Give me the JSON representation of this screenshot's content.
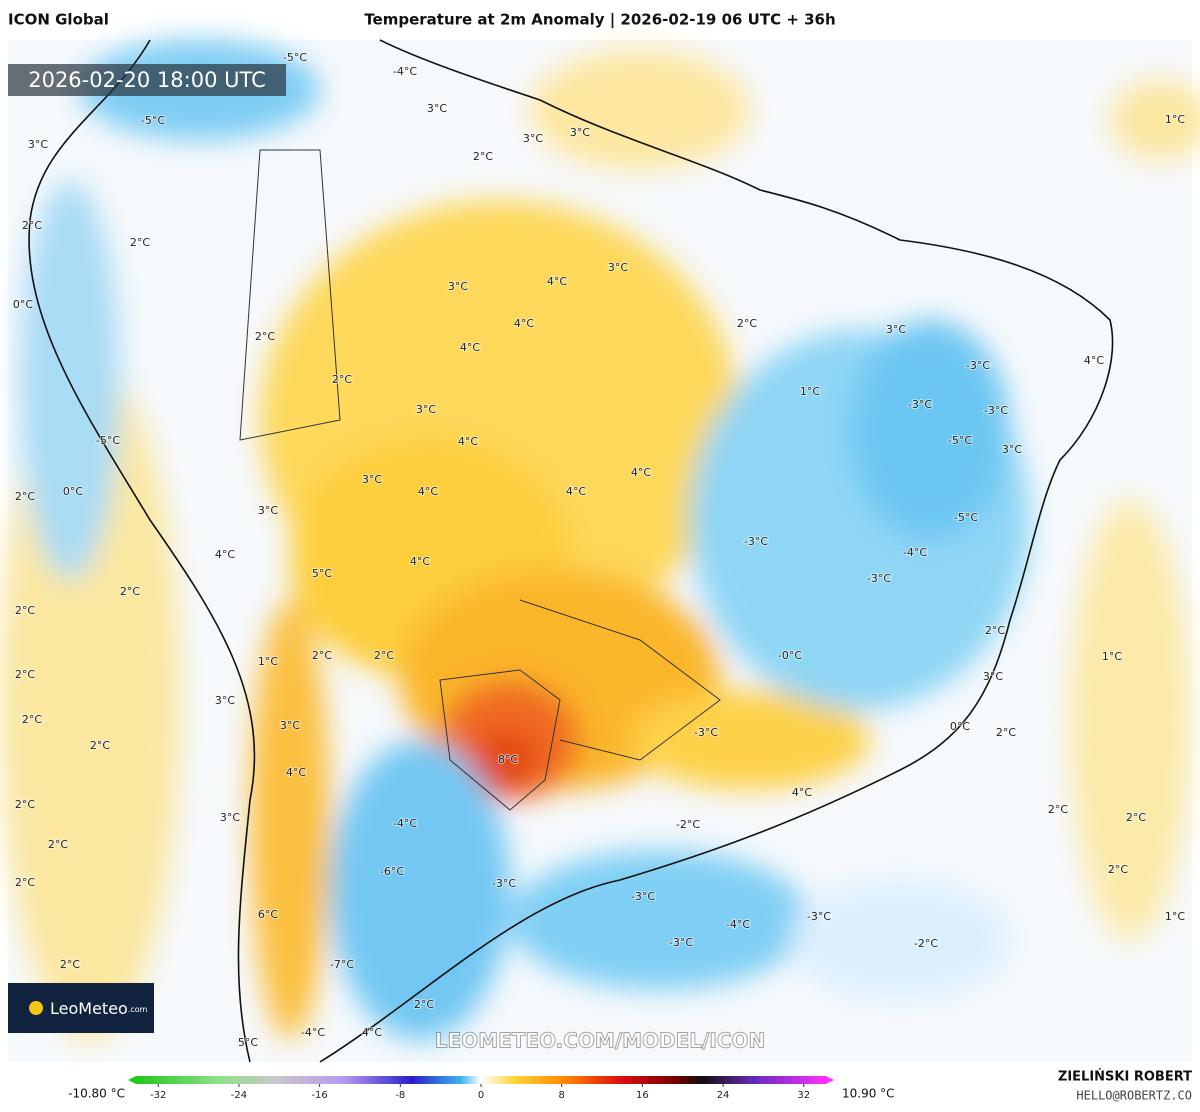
{
  "header": {
    "model": "ICON Global",
    "title": "Temperature at 2m Anomaly | 2026-02-19 06 UTC + 36h"
  },
  "timestamp": "2026-02-20 18:00 UTC",
  "map_labels": [
    "2°C",
    "2°C",
    "2°C",
    "3°C",
    "4°C",
    "3°C",
    "4°C",
    "4°C",
    "2°C",
    "3°C",
    "4°C",
    "1°C",
    "3°C",
    "3°C",
    "3°C",
    "2°C",
    "-4°C",
    "-5°C",
    "-5°C",
    "3°C",
    "2°C",
    "0°C",
    "-5°C",
    "2°C",
    "0°C",
    "3°C",
    "4°C",
    "2°C",
    "5°C",
    "2°C",
    "4°C",
    "3°C",
    "4°C",
    "3°C",
    "4°C",
    "4°C",
    "4°C",
    "1°C",
    "-3°C",
    "-3°C",
    "-3°C",
    "-5°C",
    "3°C",
    "-5°C",
    "-3°C",
    "-4°C",
    "-3°C",
    "2°C",
    "1°C",
    "-0°C",
    "3°C",
    "0°C",
    "2°C",
    "-3°C",
    "1°C",
    "2°C",
    "2°C",
    "2°C",
    "3°C",
    "2°C",
    "2°C",
    "3°C",
    "4°C",
    "8°C",
    "4°C",
    "2°C",
    "2°C",
    "2°C",
    "1°C",
    "-2°C",
    "-4°C",
    "3°C",
    "2°C",
    "2°C",
    "2°C",
    "-6°C",
    "-3°C",
    "-3°C",
    "-4°C",
    "-3°C",
    "-2°C",
    "-3°C",
    "6°C",
    "-7°C",
    "2°C",
    "2°C",
    "4°C",
    "-4°C",
    "5°C"
  ],
  "watermark": "LEOMETEO.COM/MODEL/ICON",
  "logo": {
    "name": "LeoMeteo",
    "suffix": ".com"
  },
  "colorbar": {
    "min_label": "-10.80 °C",
    "max_label": "10.90 °C",
    "lim": [
      -35,
      35
    ],
    "ticks": [
      -32,
      -24,
      -16,
      -8,
      0,
      8,
      16,
      24,
      32
    ]
  },
  "footer": {
    "author": "ZIELIŃSKI ROBERT",
    "email": "HELLO@ROBERTZ.CO"
  }
}
